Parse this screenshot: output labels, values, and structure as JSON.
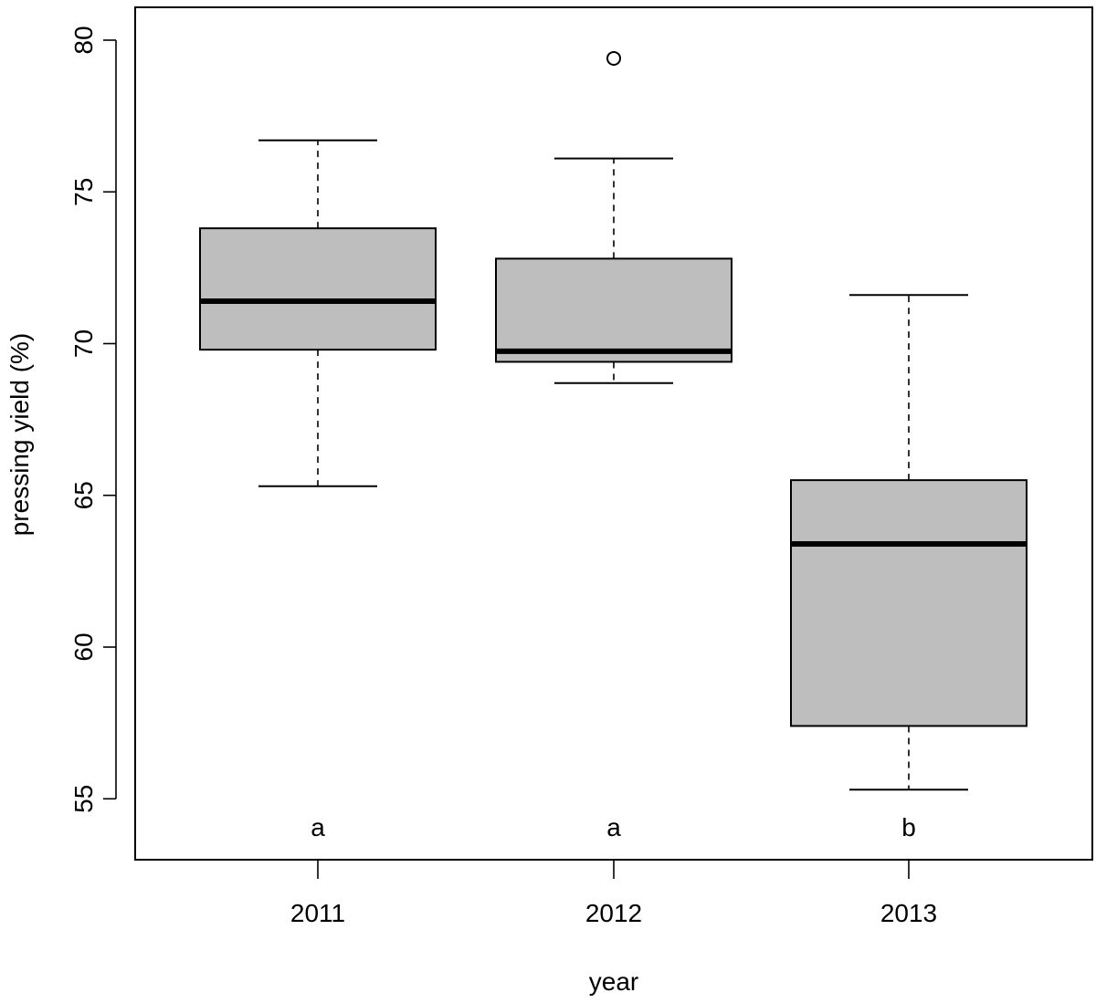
{
  "chart_data": {
    "type": "boxplot",
    "title": "",
    "xlabel": "year",
    "ylabel": "pressing yield (%)",
    "ylim": [
      53,
      81
    ],
    "yticks": [
      55,
      60,
      65,
      70,
      75,
      80
    ],
    "categories": [
      "2011",
      "2012",
      "2013"
    ],
    "boxes": [
      {
        "category": "2011",
        "whisker_low": 65.3,
        "q1": 69.8,
        "median": 71.4,
        "q3": 73.8,
        "whisker_high": 76.7,
        "outliers": [],
        "group_letter": "a"
      },
      {
        "category": "2012",
        "whisker_low": 68.7,
        "q1": 69.4,
        "median": 69.75,
        "q3": 72.8,
        "whisker_high": 76.1,
        "outliers": [
          79.4
        ],
        "group_letter": "a"
      },
      {
        "category": "2013",
        "whisker_low": 55.3,
        "q1": 57.4,
        "median": 63.4,
        "q3": 65.5,
        "whisker_high": 71.6,
        "outliers": [],
        "group_letter": "b"
      }
    ],
    "box_fill": "#bebebe",
    "grid": false,
    "legend": "none"
  }
}
